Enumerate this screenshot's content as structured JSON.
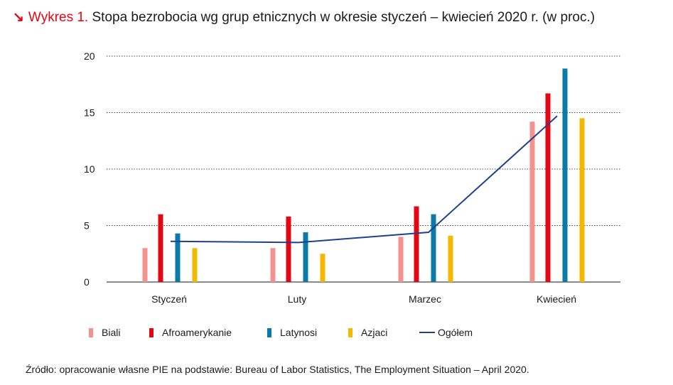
{
  "header": {
    "arrow": "↘",
    "label": "Wykres 1.",
    "title": "Stopa bezrobocia wg grup etnicznych w okresie styczeń – kwiecień 2020 r. (w proc.)"
  },
  "source": "Źródło: opracowanie własne PIE na podstawie: Bureau of Labor Statistics, The Employment Situation – April 2020.",
  "colors": {
    "biali": "#f4928d",
    "afroamerykanie": "#e30613",
    "latynosi": "#0a7aa8",
    "azjaci": "#f5b800",
    "ogolem": "#1f3f8f"
  },
  "chart_data": {
    "type": "bar",
    "categories": [
      "Styczeń",
      "Luty",
      "Marzec",
      "Kwiecień"
    ],
    "series": [
      {
        "name": "Biali",
        "values": [
          3.0,
          3.0,
          4.0,
          14.2
        ],
        "color_key": "biali",
        "kind": "bar"
      },
      {
        "name": "Afroamerykanie",
        "values": [
          6.0,
          5.8,
          6.7,
          16.7
        ],
        "color_key": "afroamerykanie",
        "kind": "bar"
      },
      {
        "name": "Latynosi",
        "values": [
          4.3,
          4.4,
          6.0,
          18.9
        ],
        "color_key": "latynosi",
        "kind": "bar"
      },
      {
        "name": "Azjaci",
        "values": [
          3.0,
          2.5,
          4.1,
          14.5
        ],
        "color_key": "azjaci",
        "kind": "bar"
      },
      {
        "name": "Ogółem",
        "values": [
          3.6,
          3.5,
          4.4,
          14.7
        ],
        "color_key": "ogolem",
        "kind": "line"
      }
    ],
    "yticks": [
      0,
      5,
      10,
      15,
      20
    ],
    "ylim": [
      0,
      20
    ],
    "grid": true,
    "legend_position": "bottom"
  }
}
